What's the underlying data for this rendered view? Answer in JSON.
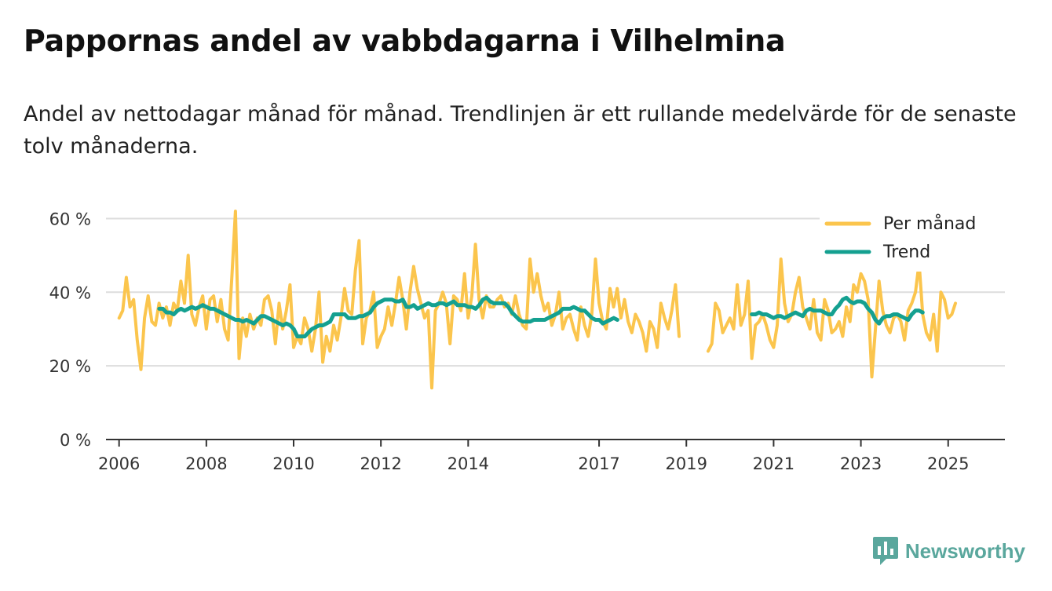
{
  "header": {
    "title": "Pappornas andel av vabbdagarna i Vilhelmina",
    "subtitle": "Andel av nettodagar månad för månad. Trendlinjen är ett rullande medelvärde för de senaste tolv månaderna."
  },
  "brand": {
    "name": "Newsworthy",
    "icon": "bar-chart-speech-bubble-icon",
    "color": "#5aa79d"
  },
  "colors": {
    "monthly": "#fbc54d",
    "trend": "#14a090",
    "grid": "#dddddd",
    "axis": "#333333"
  },
  "chart_data": {
    "type": "line",
    "title": "Pappornas andel av vabbdagarna i Vilhelmina",
    "xlabel": "",
    "ylabel": "",
    "ylim": [
      0,
      65
    ],
    "y_ticks": [
      {
        "value": 0,
        "label": "0 %"
      },
      {
        "value": 20,
        "label": "20 %"
      },
      {
        "value": 40,
        "label": "40 %"
      },
      {
        "value": 60,
        "label": "60 %"
      }
    ],
    "x_range": [
      2005.7,
      2026.3
    ],
    "x_ticks": [
      {
        "value": 2006,
        "label": "2006"
      },
      {
        "value": 2008,
        "label": "2008"
      },
      {
        "value": 2010,
        "label": "2010"
      },
      {
        "value": 2012,
        "label": "2012"
      },
      {
        "value": 2014,
        "label": "2014"
      },
      {
        "value": 2017,
        "label": "2017"
      },
      {
        "value": 2019,
        "label": "2019"
      },
      {
        "value": 2021,
        "label": "2021"
      },
      {
        "value": 2023,
        "label": "2023"
      },
      {
        "value": 2025,
        "label": "2025"
      }
    ],
    "legend": {
      "position": "top-right",
      "entries": [
        "Per månad",
        "Trend"
      ]
    },
    "series": [
      {
        "name": "Per månad",
        "segments": [
          {
            "start": 2006.0,
            "values": [
              33,
              35,
              44,
              36,
              38,
              27,
              19,
              33,
              39,
              32,
              31,
              37,
              33,
              36,
              31,
              37,
              35,
              43,
              37,
              50,
              34,
              31,
              36,
              39,
              30,
              38,
              39,
              32,
              38,
              30,
              27,
              44,
              62,
              22,
              33,
              28,
              34,
              30,
              33,
              31,
              38,
              39,
              35,
              26,
              37,
              30,
              35,
              42,
              25,
              28,
              26,
              33,
              30,
              24,
              30,
              40,
              21,
              28,
              24,
              31,
              27,
              33,
              41,
              35,
              34,
              46,
              54,
              26,
              33,
              35,
              40,
              25,
              28,
              30,
              36,
              31,
              37,
              44,
              38,
              30,
              40,
              47,
              41,
              37,
              33,
              35,
              14,
              35,
              37,
              40,
              37,
              26,
              39,
              38,
              35,
              45,
              33,
              39,
              53,
              38,
              33,
              39,
              36,
              36,
              38,
              39,
              36,
              37,
              34,
              39,
              34,
              31,
              30,
              49,
              40,
              45,
              39,
              35,
              37,
              31,
              34,
              40,
              30,
              33,
              34,
              30,
              27,
              36,
              31,
              28,
              34,
              49,
              37,
              32,
              30,
              41,
              36,
              41,
              33,
              38,
              32,
              29,
              34,
              32,
              29,
              24,
              32,
              30,
              25,
              37,
              33,
              30,
              35,
              42,
              28
            ]
          },
          {
            "start": 2019.5,
            "values": [
              24,
              26,
              37,
              35,
              29,
              31,
              33,
              30,
              42,
              31,
              34,
              43,
              22,
              31,
              32,
              34,
              31,
              27,
              25,
              31,
              49,
              37,
              32,
              34,
              40,
              44,
              36,
              33,
              30,
              38,
              29,
              27,
              38,
              35,
              29,
              30,
              32,
              28,
              36,
              32,
              42,
              40,
              45,
              43,
              38,
              17,
              30,
              43,
              35,
              31,
              29,
              33,
              34,
              32,
              27,
              35,
              37,
              40,
              48,
              34,
              29,
              27,
              34,
              24,
              40,
              38,
              33,
              34,
              37
            ]
          }
        ]
      },
      {
        "name": "Trend",
        "segments": [
          {
            "start": 2006.92,
            "values": [
              35.5,
              35.5,
              34.5,
              34.5,
              34,
              35,
              35.5,
              35,
              35.5,
              36,
              35.5,
              36,
              36.5,
              36,
              35.5,
              35.5,
              35,
              34.5,
              34,
              33.5,
              33,
              32.5,
              32.5,
              32,
              32.5,
              32,
              31.5,
              32.5,
              33.5,
              33.5,
              33,
              32.5,
              32,
              31.5,
              31,
              31.5,
              31,
              30,
              28,
              28,
              28,
              29,
              30,
              30.5,
              31,
              31,
              31.5,
              32,
              34,
              34,
              34,
              34,
              33,
              33,
              33,
              33.5,
              33.5,
              34,
              34.5,
              36,
              37,
              37.5,
              38,
              38,
              38,
              37.5,
              37.5,
              38,
              36,
              36,
              36.5,
              35.5,
              36,
              36.5,
              37,
              36.5,
              36.5,
              37,
              37,
              36.5,
              37,
              37.5,
              36.5,
              36.5,
              36.5,
              36,
              36,
              35.5,
              36.5,
              38,
              38.5,
              37.5,
              37,
              37,
              37,
              37,
              36,
              34.5,
              33.5,
              32.5,
              32,
              32,
              32,
              32.5,
              32.5,
              32.5,
              32.5,
              33,
              33.5,
              34,
              34.5,
              35.5,
              35.5,
              35.5,
              36,
              35.5,
              35,
              35,
              34,
              33,
              32.5,
              32.5,
              31.5,
              32,
              32.5,
              33,
              32.5
            ]
          },
          {
            "start": 2020.5,
            "values": [
              34,
              34,
              34.5,
              34,
              34,
              33.5,
              33,
              33.5,
              33.5,
              33,
              33.5,
              34,
              34.5,
              34,
              33.5,
              35,
              35.5,
              35,
              35,
              35,
              34.5,
              34,
              34,
              35.5,
              36.5,
              38,
              38.5,
              37.5,
              37,
              37.5,
              37.5,
              37,
              35.5,
              34.5,
              32.5,
              31.5,
              33,
              33.5,
              33.5,
              34,
              34,
              33.5,
              33,
              32.5,
              34,
              35,
              35,
              34.5
            ]
          }
        ]
      }
    ]
  }
}
